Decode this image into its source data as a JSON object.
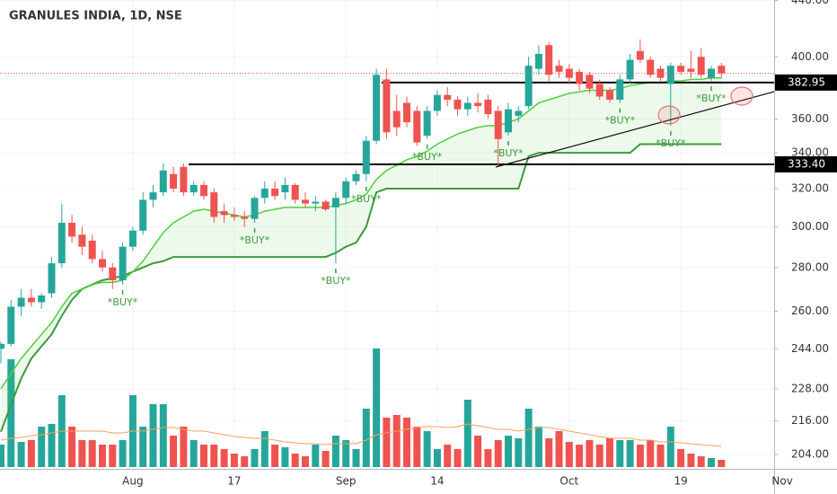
{
  "chart_data": {
    "type": "candlestick",
    "title": "GRANULES INDIA, 1D, NSE",
    "log_scale": true,
    "grid": true,
    "ylim": [
      199.7,
      440.4
    ],
    "yticks": [
      {
        "value": 440,
        "label": "440.00"
      },
      {
        "value": 400,
        "label": "400.00"
      },
      {
        "value": 360,
        "label": "360.00"
      },
      {
        "value": 340,
        "label": "340.00"
      },
      {
        "value": 320,
        "label": "320.00"
      },
      {
        "value": 300,
        "label": "300.00"
      },
      {
        "value": 280,
        "label": "280.00"
      },
      {
        "value": 260,
        "label": "260.00"
      },
      {
        "value": 244,
        "label": "244.00"
      },
      {
        "value": 228,
        "label": "228.00"
      },
      {
        "value": 216,
        "label": "216.00"
      },
      {
        "value": 204,
        "label": "204.00"
      }
    ],
    "up_color": "#26a69a",
    "down_color": "#ef5350",
    "categories": [
      null,
      null,
      null,
      null,
      null,
      null,
      null,
      null,
      null,
      null,
      null,
      null,
      null,
      "Aug",
      null,
      null,
      null,
      null,
      null,
      null,
      null,
      null,
      null,
      "17",
      null,
      null,
      null,
      null,
      null,
      null,
      null,
      null,
      null,
      null,
      "Sep",
      null,
      null,
      null,
      null,
      null,
      null,
      null,
      null,
      "14",
      null,
      null,
      null,
      null,
      null,
      null,
      null,
      null,
      null,
      null,
      null,
      null,
      "Oct",
      null,
      null,
      null,
      null,
      null,
      null,
      null,
      null,
      null,
      null,
      "19",
      null,
      null,
      null,
      null,
      null,
      null,
      null,
      null,
      null,
      "Nov"
    ],
    "open": [
      244,
      246,
      262,
      266,
      264,
      268,
      282,
      302,
      296,
      293,
      284,
      280,
      274,
      290,
      298,
      314,
      318,
      328,
      332,
      318,
      322,
      318,
      308,
      306,
      305,
      304,
      315,
      320,
      318,
      322,
      314,
      312,
      313,
      310,
      315,
      324,
      328,
      347,
      385,
      365,
      370,
      365,
      350,
      365,
      375,
      372,
      366,
      370,
      372,
      365,
      352,
      362,
      368,
      392,
      408,
      394,
      392,
      390,
      388,
      382,
      378,
      372,
      385,
      404,
      398,
      392,
      382,
      394,
      392,
      400,
      386,
      394,
      null,
      null,
      null,
      null,
      null,
      null
    ],
    "high": [
      247,
      265,
      270,
      270,
      268,
      285,
      312,
      306,
      300,
      296,
      288,
      282,
      292,
      300,
      318,
      322,
      334,
      332,
      334,
      324,
      324,
      320,
      312,
      310,
      308,
      316,
      324,
      324,
      326,
      323,
      318,
      316,
      314,
      318,
      326,
      330,
      350,
      392,
      392,
      375,
      374,
      368,
      368,
      378,
      380,
      374,
      374,
      376,
      375,
      368,
      370,
      368,
      400,
      408,
      410,
      398,
      395,
      392,
      390,
      385,
      380,
      388,
      402,
      412,
      400,
      394,
      396,
      396,
      404,
      406,
      394,
      396,
      null,
      null,
      null,
      null,
      null,
      null
    ],
    "low": [
      238,
      245,
      258,
      262,
      261,
      266,
      280,
      292,
      286,
      282,
      278,
      270,
      272,
      288,
      296,
      310,
      316,
      318,
      316,
      316,
      314,
      302,
      302,
      303,
      300,
      302,
      312,
      314,
      314,
      312,
      310,
      308,
      308,
      282,
      312,
      322,
      324,
      345,
      348,
      350,
      355,
      344,
      348,
      362,
      368,
      362,
      362,
      364,
      360,
      332,
      350,
      358,
      366,
      388,
      384,
      386,
      382,
      378,
      376,
      372,
      370,
      370,
      382,
      396,
      386,
      384,
      356,
      388,
      386,
      386,
      384,
      386,
      null,
      null,
      null,
      null,
      null,
      null
    ],
    "close": [
      246,
      262,
      266,
      264,
      267,
      282,
      302,
      295,
      290,
      284,
      280,
      274,
      290,
      298,
      314,
      318,
      330,
      320,
      318,
      322,
      316,
      305,
      306,
      305,
      304,
      315,
      320,
      316,
      322,
      314,
      312,
      313,
      309,
      315,
      324,
      328,
      347,
      388,
      352,
      355,
      358,
      346,
      365,
      375,
      372,
      366,
      370,
      368,
      363,
      348,
      366,
      365,
      394,
      402,
      388,
      390,
      386,
      382,
      379,
      374,
      372,
      385,
      398,
      398,
      388,
      386,
      394,
      390,
      390,
      388,
      392,
      389,
      null,
      null,
      null,
      null,
      null,
      null
    ],
    "volume": [
      25,
      120,
      28,
      30,
      45,
      48,
      80,
      45,
      30,
      30,
      25,
      25,
      30,
      80,
      45,
      70,
      70,
      35,
      45,
      30,
      25,
      25,
      20,
      15,
      12,
      20,
      40,
      25,
      22,
      15,
      12,
      25,
      18,
      35,
      30,
      20,
      65,
      132,
      55,
      58,
      55,
      45,
      40,
      20,
      25,
      20,
      75,
      35,
      20,
      30,
      35,
      32,
      65,
      45,
      32,
      40,
      28,
      25,
      30,
      25,
      32,
      30,
      30,
      25,
      30,
      25,
      45,
      20,
      15,
      12,
      10,
      8,
      null,
      null,
      null,
      null,
      null,
      null
    ],
    "volume_ma": [
      30,
      32,
      33,
      35,
      36,
      38,
      40,
      40,
      40,
      40,
      40,
      38,
      38,
      40,
      40,
      42,
      44,
      44,
      42,
      40,
      40,
      38,
      36,
      34,
      33,
      32,
      32,
      30,
      28,
      27,
      26,
      26,
      25,
      26,
      26,
      26,
      30,
      36,
      38,
      40,
      42,
      44,
      45,
      45,
      44,
      45,
      48,
      46,
      44,
      42,
      42,
      40,
      42,
      44,
      44,
      42,
      40,
      38,
      36,
      34,
      32,
      32,
      32,
      30,
      30,
      28,
      28,
      27,
      26,
      25,
      24,
      23,
      null,
      null,
      null,
      null,
      null,
      null
    ],
    "volume_ma_color": "#f5a25d",
    "ema": [
      228,
      234,
      240,
      245,
      250,
      255,
      262,
      268,
      270,
      272,
      273,
      273,
      274,
      278,
      283,
      290,
      297,
      302,
      305,
      308,
      309,
      308,
      307,
      306,
      305,
      306,
      308,
      309,
      310,
      310,
      310,
      310,
      310,
      311,
      312,
      314,
      317,
      325,
      330,
      333,
      336,
      338,
      341,
      345,
      348,
      351,
      353,
      355,
      356,
      356,
      358,
      360,
      365,
      370,
      372,
      374,
      376,
      377,
      378,
      378,
      378,
      379,
      381,
      382,
      383,
      383,
      384,
      384,
      385,
      385,
      386,
      386,
      null,
      null,
      null,
      null,
      null,
      null
    ],
    "ema_color": "#4cd137",
    "stop": [
      212,
      222,
      232,
      240,
      245,
      250,
      258,
      265,
      270,
      272,
      274,
      275,
      276,
      278,
      280,
      282,
      283,
      285,
      285,
      285,
      285,
      285,
      285,
      285,
      285,
      285,
      285,
      285,
      285,
      285,
      285,
      285,
      285,
      287,
      290,
      292,
      300,
      318,
      320,
      320,
      320,
      320,
      320,
      320,
      320,
      320,
      320,
      320,
      320,
      320,
      320,
      320,
      338,
      340,
      340,
      340,
      340,
      340,
      340,
      340,
      340,
      340,
      340,
      345,
      345,
      345,
      345,
      345,
      345,
      345,
      345,
      345,
      null,
      null,
      null,
      null,
      null,
      null
    ],
    "stop_color": "#3c9a3c",
    "band_fill": "rgba(76, 209, 55, 0.10)",
    "buy_signals": [
      null,
      null,
      null,
      null,
      null,
      null,
      null,
      null,
      null,
      null,
      null,
      null,
      "*BUY*",
      null,
      null,
      null,
      null,
      null,
      null,
      null,
      null,
      null,
      null,
      null,
      null,
      "*BUY*",
      null,
      null,
      null,
      null,
      null,
      null,
      null,
      "*BUY*",
      null,
      null,
      "*BUY*",
      null,
      null,
      null,
      null,
      null,
      "*BUY*",
      null,
      null,
      null,
      null,
      null,
      null,
      null,
      "*BUY*",
      null,
      null,
      null,
      null,
      null,
      null,
      null,
      null,
      null,
      null,
      "*BUY*",
      null,
      null,
      null,
      null,
      "*BUY*",
      null,
      null,
      null,
      "*BUY*",
      null,
      null,
      null,
      null,
      null,
      null,
      null
    ],
    "buy_color": "#3c9a3c",
    "hlines": [
      {
        "value": 382.95,
        "label": "382.95"
      },
      {
        "value": 333.4,
        "label": "333.40"
      }
    ]
  }
}
